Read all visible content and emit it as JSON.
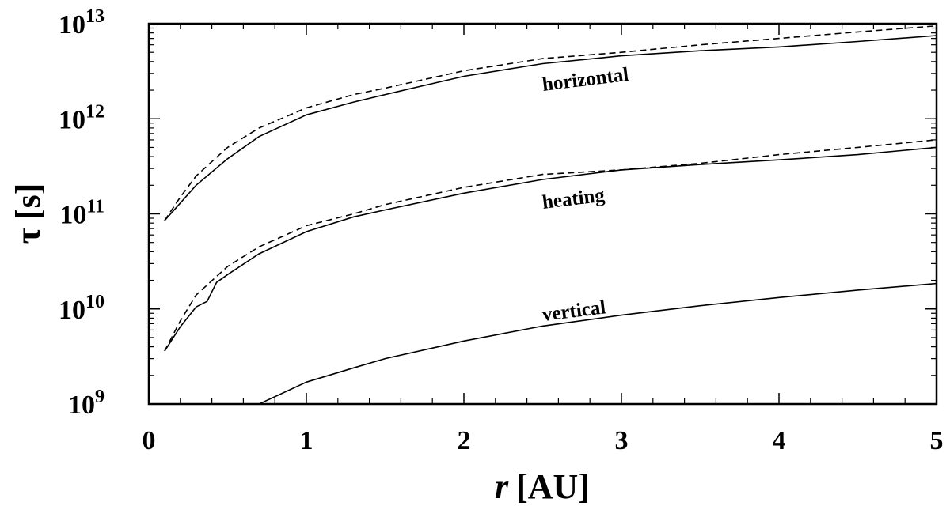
{
  "chart_data": {
    "type": "line",
    "x_scale": "linear",
    "y_scale": "log",
    "xlim": [
      0,
      5
    ],
    "ylim": [
      1000000000.0,
      10000000000000.0
    ],
    "x_ticks": [
      {
        "value": 0,
        "label": "0"
      },
      {
        "value": 1,
        "label": "1"
      },
      {
        "value": 2,
        "label": "2"
      },
      {
        "value": 3,
        "label": "3"
      },
      {
        "value": 4,
        "label": "4"
      },
      {
        "value": 5,
        "label": "5"
      }
    ],
    "y_ticks": [
      {
        "value": 1000000000.0,
        "base": "10",
        "exp": "9"
      },
      {
        "value": 10000000000.0,
        "base": "10",
        "exp": "10"
      },
      {
        "value": 100000000000.0,
        "base": "10",
        "exp": "11"
      },
      {
        "value": 1000000000000.0,
        "base": "10",
        "exp": "12"
      },
      {
        "value": 10000000000000.0,
        "base": "10",
        "exp": "13"
      }
    ],
    "xlabel": {
      "symbol": "r",
      "unit": "[AU]"
    },
    "ylabel": {
      "symbol": "τ",
      "unit": "[s]"
    },
    "curve_labels": [
      "horizontal",
      "heating",
      "vertical"
    ],
    "series": [
      {
        "group": "horizontal",
        "style": "solid",
        "x": [
          0.1,
          0.2,
          0.3,
          0.5,
          0.7,
          1.0,
          1.3,
          1.5,
          2.0,
          2.5,
          3.0,
          3.5,
          4.0,
          4.5,
          5.0
        ],
        "y": [
          85000000000.0,
          130000000000.0,
          200000000000.0,
          380000000000.0,
          650000000000.0,
          1100000000000.0,
          1500000000000.0,
          1800000000000.0,
          2800000000000.0,
          3800000000000.0,
          4600000000000.0,
          5200000000000.0,
          5700000000000.0,
          6500000000000.0,
          7500000000000.0
        ]
      },
      {
        "group": "horizontal",
        "style": "dashed",
        "x": [
          0.1,
          0.2,
          0.3,
          0.5,
          0.7,
          1.0,
          1.3,
          1.5,
          2.0,
          2.5,
          3.0,
          3.5,
          4.0,
          4.5,
          5.0
        ],
        "y": [
          85000000000.0,
          150000000000.0,
          250000000000.0,
          500000000000.0,
          800000000000.0,
          1300000000000.0,
          1800000000000.0,
          2100000000000.0,
          3200000000000.0,
          4300000000000.0,
          5000000000000.0,
          6000000000000.0,
          7000000000000.0,
          8200000000000.0,
          9500000000000.0
        ]
      },
      {
        "group": "heating",
        "style": "solid",
        "x": [
          0.1,
          0.2,
          0.3,
          0.37,
          0.43,
          0.5,
          0.7,
          1.0,
          1.3,
          1.5,
          2.0,
          2.5,
          3.0,
          3.5,
          4.0,
          4.5,
          5.0
        ],
        "y": [
          3600000000.0,
          6500000000.0,
          10500000000.0,
          12000000000.0,
          19000000000.0,
          23000000000.0,
          38000000000.0,
          65000000000.0,
          93000000000.0,
          110000000000.0,
          165000000000.0,
          230000000000.0,
          290000000000.0,
          330000000000.0,
          370000000000.0,
          420000000000.0,
          500000000000.0
        ]
      },
      {
        "group": "heating",
        "style": "dashed",
        "x": [
          0.1,
          0.2,
          0.3,
          0.5,
          0.7,
          1.0,
          1.3,
          1.5,
          2.0,
          2.5,
          3.0,
          3.5,
          4.0,
          4.5,
          5.0
        ],
        "y": [
          3600000000.0,
          7500000000.0,
          14000000000.0,
          28000000000.0,
          45000000000.0,
          75000000000.0,
          100000000000.0,
          125000000000.0,
          190000000000.0,
          260000000000.0,
          290000000000.0,
          340000000000.0,
          420000000000.0,
          500000000000.0,
          600000000000.0
        ]
      },
      {
        "group": "vertical",
        "style": "solid",
        "x": [
          0.7,
          1.0,
          1.3,
          1.5,
          2.0,
          2.5,
          3.0,
          3.5,
          4.0,
          4.5,
          5.0
        ],
        "y": [
          1000000000.0,
          1700000000.0,
          2400000000.0,
          3000000000.0,
          4600000000.0,
          6600000000.0,
          8600000000.0,
          10800000000.0,
          13200000000.0,
          15800000000.0,
          18500000000.0
        ]
      }
    ]
  }
}
